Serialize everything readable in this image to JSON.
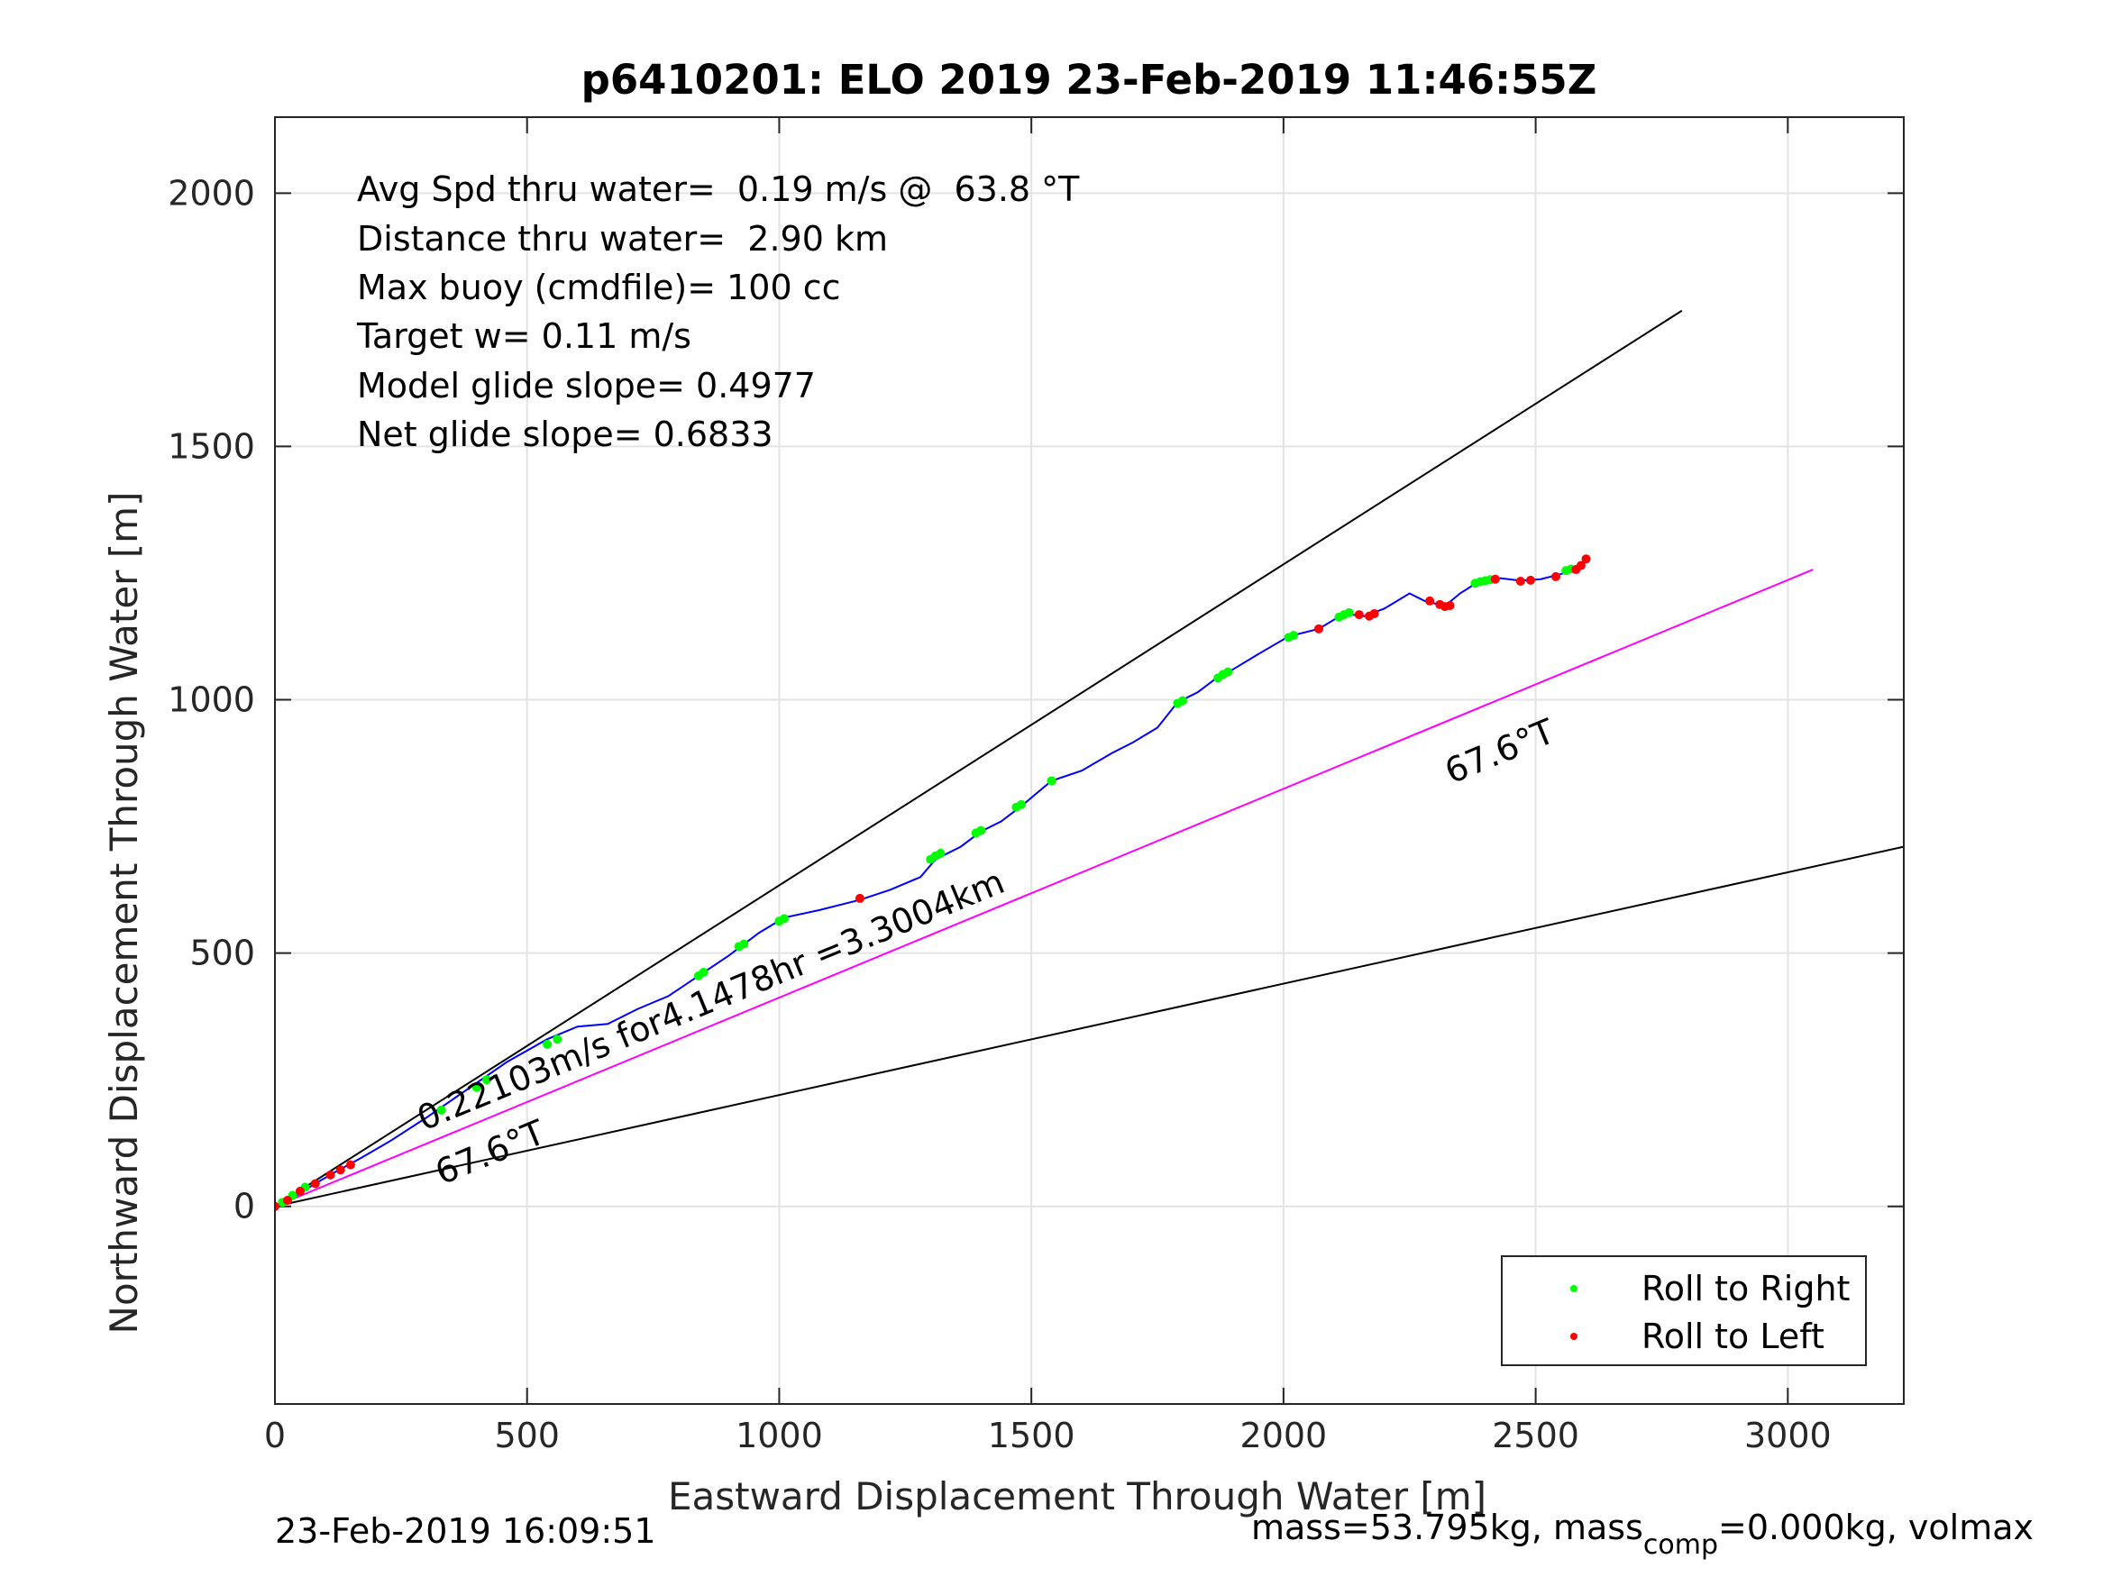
{
  "chart_data": {
    "type": "line",
    "title": "p6410201: ELO 2019 23-Feb-2019 11:46:55Z",
    "xlabel": "Eastward Displacement Through Water [m]",
    "ylabel": "Northward Displacement Through Water [m]",
    "xlim": [
      0,
      3230
    ],
    "ylim": [
      -390,
      2150
    ],
    "xticks": [
      0,
      500,
      1000,
      1500,
      2000,
      2500,
      3000
    ],
    "yticks": [
      0,
      500,
      1000,
      1500,
      2000
    ],
    "grid": true,
    "legend_position": "bottom-right",
    "legend": [
      {
        "label": "Roll to Right",
        "color": "#00ff00"
      },
      {
        "label": "Roll to Left",
        "color": "#ff0000"
      }
    ],
    "annotations": [
      "Avg Spd thru water=  0.19 m/s @  63.8 °T",
      "Distance thru water=  2.90 km",
      "Max buoy (cmdfile)= 100 cc",
      "Target w= 0.11 m/s",
      "Model glide slope= 0.4977",
      "Net glide slope= 0.6833"
    ],
    "line_labels": {
      "speed": "0.22103m/s for4.1478hr =3.3004km",
      "heading_upper": "67.6°T",
      "heading_lower": "67.6°T"
    },
    "reference_lines": [
      {
        "name": "upper-bound",
        "color": "#000000",
        "x": [
          0,
          2790
        ],
        "y": [
          0,
          1768
        ]
      },
      {
        "name": "heading",
        "color": "#ff00ff",
        "x": [
          0,
          3050
        ],
        "y": [
          0,
          1257
        ]
      },
      {
        "name": "lower-bound",
        "color": "#000000",
        "x": [
          0,
          3230
        ],
        "y": [
          0,
          710
        ]
      }
    ],
    "track": {
      "color": "#0000ff",
      "x": [
        0,
        40,
        80,
        120,
        170,
        230,
        300,
        380,
        460,
        540,
        600,
        660,
        720,
        780,
        840,
        900,
        960,
        1010,
        1080,
        1160,
        1220,
        1280,
        1310,
        1360,
        1400,
        1440,
        1480,
        1540,
        1600,
        1660,
        1700,
        1750,
        1790,
        1830,
        1870,
        1900,
        1950,
        2010,
        2070,
        2120,
        2160,
        2200,
        2250,
        2280,
        2320,
        2350,
        2390,
        2430,
        2470,
        2510,
        2550,
        2590,
        2600
      ],
      "y": [
        0,
        20,
        45,
        68,
        95,
        130,
        175,
        230,
        285,
        330,
        355,
        360,
        390,
        415,
        455,
        495,
        540,
        570,
        585,
        605,
        625,
        650,
        685,
        710,
        740,
        760,
        790,
        840,
        860,
        895,
        915,
        945,
        995,
        1015,
        1045,
        1060,
        1090,
        1125,
        1140,
        1170,
        1165,
        1180,
        1210,
        1195,
        1185,
        1210,
        1235,
        1240,
        1235,
        1238,
        1248,
        1262,
        1280
      ]
    },
    "roll_right": {
      "x": [
        15,
        35,
        60,
        330,
        400,
        420,
        540,
        560,
        840,
        850,
        920,
        930,
        1000,
        1010,
        1300,
        1310,
        1320,
        1390,
        1400,
        1470,
        1480,
        1540,
        1790,
        1800,
        1870,
        1880,
        1890,
        2010,
        2020,
        2110,
        2120,
        2130,
        2380,
        2390,
        2400,
        2410,
        2560,
        2570
      ],
      "y": [
        8,
        22,
        38,
        190,
        235,
        250,
        320,
        330,
        455,
        462,
        513,
        518,
        563,
        568,
        685,
        692,
        697,
        737,
        742,
        788,
        793,
        840,
        993,
        998,
        1043,
        1050,
        1055,
        1123,
        1127,
        1163,
        1168,
        1172,
        1230,
        1233,
        1235,
        1237,
        1255,
        1258
      ]
    },
    "roll_left": {
      "x": [
        0,
        25,
        50,
        80,
        110,
        130,
        150,
        1160,
        2070,
        2150,
        2170,
        2180,
        2290,
        2310,
        2320,
        2330,
        2420,
        2470,
        2490,
        2540,
        2580,
        2590,
        2600
      ],
      "y": [
        0,
        12,
        30,
        45,
        62,
        72,
        82,
        608,
        1140,
        1168,
        1165,
        1170,
        1195,
        1188,
        1184,
        1186,
        1238,
        1234,
        1236,
        1243,
        1257,
        1265,
        1278
      ]
    }
  },
  "footer": {
    "timestamp": "23-Feb-2019 16:09:51",
    "mass_pre": "mass=53.795kg, mass",
    "mass_sub": "comp",
    "mass_post": "=0.000kg, volmax"
  }
}
